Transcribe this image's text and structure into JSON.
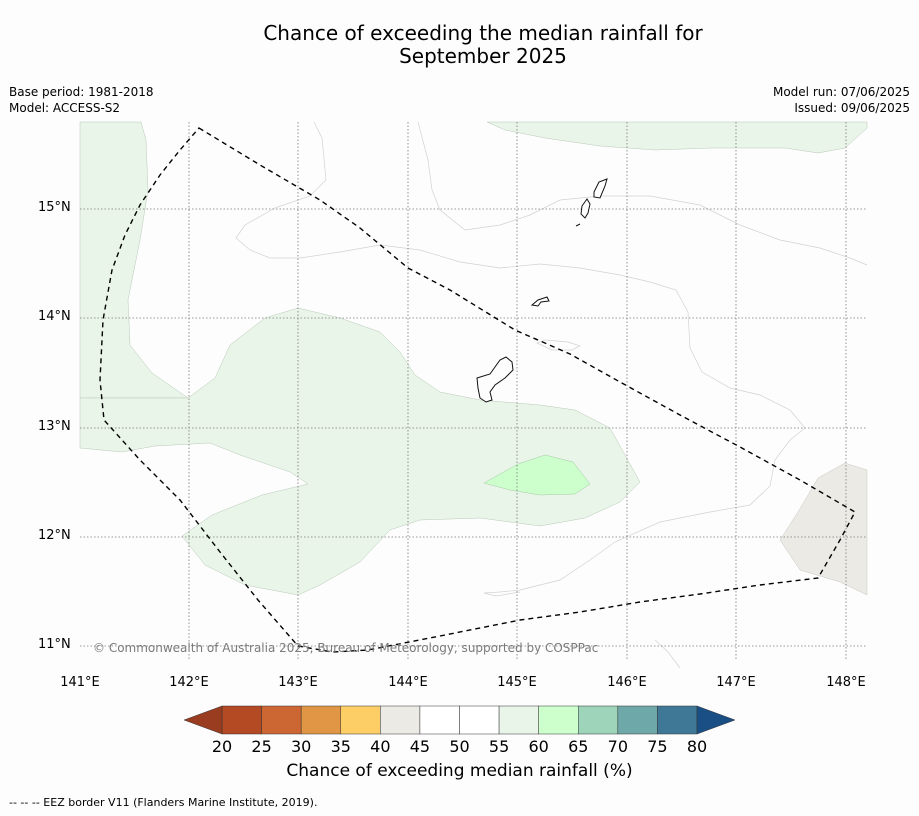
{
  "title_line1": "Chance of exceeding the median rainfall for",
  "title_line2": "September 2025",
  "base_period": "Base period: 1981-2018",
  "model": "Model: ACCESS-S2",
  "model_run": "Model run: 07/06/2025",
  "issued": "Issued: 09/06/2025",
  "copyright": "© Commonwealth of Australia 2025, Bureau of Meteorology, supported by COSPPac",
  "lat_labels": [
    "15°N",
    "14°N",
    "13°N",
    "12°N",
    "11°N"
  ],
  "lon_labels": [
    "141°E",
    "142°E",
    "143°E",
    "144°E",
    "145°E",
    "146°E",
    "147°E",
    "148°E"
  ],
  "colorbar": {
    "ticks": [
      "20",
      "25",
      "30",
      "35",
      "40",
      "45",
      "50",
      "55",
      "60",
      "65",
      "70",
      "75",
      "80"
    ],
    "colors": [
      "#b34a24",
      "#cc6633",
      "#e09644",
      "#fdcd66",
      "#ebeae5",
      "#ffffff",
      "#ffffff",
      "#e8f5e8",
      "#ccffcc",
      "#9ed4b9",
      "#6fa8a8",
      "#3f7796"
    ],
    "under_color": "#9a3c1f",
    "over_color": "#1a4f86",
    "label": "Chance of exceeding median rainfall (%)"
  },
  "footer": "--  --  -- EEZ border V11 (Flanders Marine Institute, 2019)."
}
